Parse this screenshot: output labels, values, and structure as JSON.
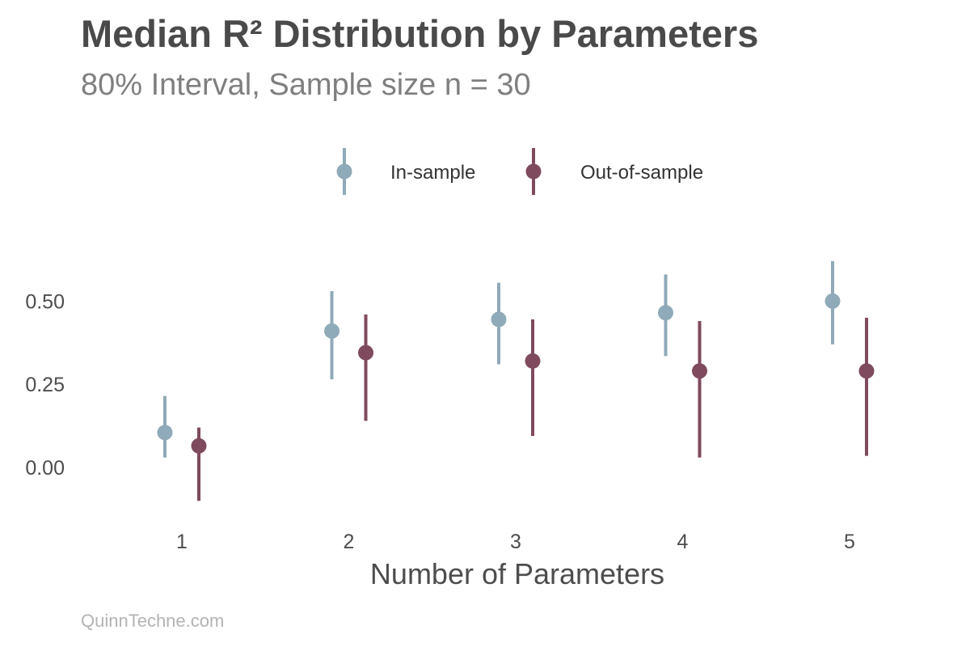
{
  "header": {
    "title": "Median R² Distribution by Parameters",
    "subtitle": "80% Interval, Sample size n = 30"
  },
  "caption": "QuinnTechne.com",
  "chart_data": {
    "type": "pointrange",
    "xlabel": "Number of Parameters",
    "ylabel": "",
    "categories": [
      "1",
      "2",
      "3",
      "4",
      "5"
    ],
    "ylim": [
      -0.17,
      0.7
    ],
    "yticks": [
      0.0,
      0.25,
      0.5
    ],
    "ytick_labels": [
      "0.00",
      "0.25",
      "0.50"
    ],
    "grid": false,
    "legend_position": "top-center",
    "series": [
      {
        "name": "In-sample",
        "color": "#8faab8",
        "median": [
          0.105,
          0.41,
          0.445,
          0.465,
          0.5
        ],
        "lower": [
          0.03,
          0.265,
          0.31,
          0.335,
          0.37
        ],
        "upper": [
          0.215,
          0.53,
          0.555,
          0.58,
          0.62
        ]
      },
      {
        "name": "Out-of-sample",
        "color": "#7f4a5e",
        "median": [
          0.065,
          0.345,
          0.32,
          0.29,
          0.29
        ],
        "lower": [
          -0.1,
          0.14,
          0.095,
          0.03,
          0.035
        ],
        "upper": [
          0.12,
          0.46,
          0.445,
          0.44,
          0.45
        ]
      }
    ]
  }
}
